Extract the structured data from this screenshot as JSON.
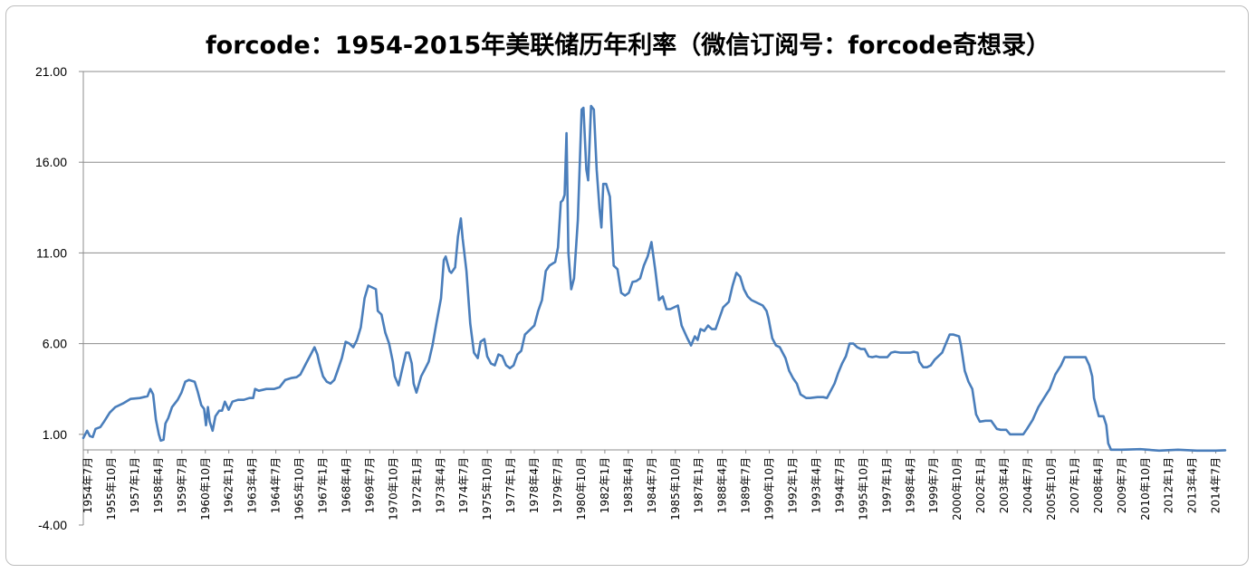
{
  "chart_data": {
    "type": "line",
    "title": "forcode：1954-2015年美联储历年利率（微信订阅号：forcode奇想录）",
    "xlabel": "",
    "ylabel": "",
    "ylim": [
      -4,
      21
    ],
    "yticks": [
      "21.00",
      "16.00",
      "11.00",
      "6.00",
      "1.00",
      "-4.00"
    ],
    "grid": true,
    "legend": "none",
    "line_color": "#4a7ebb",
    "x_labels": [
      "1954年7月",
      "1955年10月",
      "1957年1月",
      "1958年4月",
      "1959年7月",
      "1960年10月",
      "1962年1月",
      "1963年4月",
      "1964年7月",
      "1965年10月",
      "1967年1月",
      "1968年4月",
      "1969年7月",
      "1970年10月",
      "1972年1月",
      "1973年4月",
      "1974年7月",
      "1975年10月",
      "1977年1月",
      "1978年4月",
      "1979年7月",
      "1980年10月",
      "1982年1月",
      "1983年4月",
      "1984年7月",
      "1985年10月",
      "1987年1月",
      "1988年4月",
      "1989年7月",
      "1990年10月",
      "1992年1月",
      "1993年4月",
      "1994年7月",
      "1995年10月",
      "1997年1月",
      "1998年4月",
      "1999年7月",
      "2000年10月",
      "2002年1月",
      "2003年4月",
      "2004年7月",
      "2005年10月",
      "2007年1月",
      "2008年4月",
      "2009年7月",
      "2010年10月",
      "2012年1月",
      "2013年4月",
      "2014年7月"
    ],
    "series": [
      {
        "points": [
          [
            1954.5,
            0.8
          ],
          [
            1954.7,
            1.2
          ],
          [
            1954.85,
            0.9
          ],
          [
            1955.0,
            0.85
          ],
          [
            1955.15,
            1.3
          ],
          [
            1955.4,
            1.4
          ],
          [
            1955.6,
            1.7
          ],
          [
            1955.9,
            2.2
          ],
          [
            1956.2,
            2.5
          ],
          [
            1956.6,
            2.7
          ],
          [
            1957.0,
            2.95
          ],
          [
            1957.5,
            3.0
          ],
          [
            1957.9,
            3.1
          ],
          [
            1958.05,
            3.5
          ],
          [
            1958.2,
            3.2
          ],
          [
            1958.35,
            1.8
          ],
          [
            1958.5,
            1.0
          ],
          [
            1958.6,
            0.65
          ],
          [
            1958.75,
            0.7
          ],
          [
            1958.85,
            1.6
          ],
          [
            1959.0,
            1.9
          ],
          [
            1959.2,
            2.5
          ],
          [
            1959.5,
            2.9
          ],
          [
            1959.7,
            3.3
          ],
          [
            1959.9,
            3.9
          ],
          [
            1960.1,
            4.0
          ],
          [
            1960.4,
            3.9
          ],
          [
            1960.55,
            3.4
          ],
          [
            1960.75,
            2.6
          ],
          [
            1960.9,
            2.4
          ],
          [
            1961.0,
            1.5
          ],
          [
            1961.1,
            2.5
          ],
          [
            1961.2,
            1.7
          ],
          [
            1961.35,
            1.2
          ],
          [
            1961.5,
            2.0
          ],
          [
            1961.7,
            2.3
          ],
          [
            1961.85,
            2.3
          ],
          [
            1962.0,
            2.8
          ],
          [
            1962.2,
            2.35
          ],
          [
            1962.4,
            2.8
          ],
          [
            1962.7,
            2.9
          ],
          [
            1963.0,
            2.9
          ],
          [
            1963.3,
            3.0
          ],
          [
            1963.5,
            3.0
          ],
          [
            1963.6,
            3.5
          ],
          [
            1963.8,
            3.4
          ],
          [
            1964.2,
            3.5
          ],
          [
            1964.6,
            3.5
          ],
          [
            1964.9,
            3.6
          ],
          [
            1965.2,
            4.0
          ],
          [
            1965.5,
            4.1
          ],
          [
            1965.8,
            4.15
          ],
          [
            1966.0,
            4.3
          ],
          [
            1966.3,
            4.9
          ],
          [
            1966.55,
            5.4
          ],
          [
            1966.75,
            5.8
          ],
          [
            1966.9,
            5.4
          ],
          [
            1967.0,
            4.95
          ],
          [
            1967.2,
            4.2
          ],
          [
            1967.4,
            3.9
          ],
          [
            1967.6,
            3.8
          ],
          [
            1967.8,
            4.0
          ],
          [
            1968.0,
            4.6
          ],
          [
            1968.2,
            5.2
          ],
          [
            1968.4,
            6.1
          ],
          [
            1968.6,
            6.0
          ],
          [
            1968.8,
            5.8
          ],
          [
            1969.0,
            6.2
          ],
          [
            1969.2,
            6.9
          ],
          [
            1969.4,
            8.5
          ],
          [
            1969.6,
            9.2
          ],
          [
            1969.8,
            9.1
          ],
          [
            1970.0,
            9.0
          ],
          [
            1970.1,
            7.8
          ],
          [
            1970.3,
            7.6
          ],
          [
            1970.5,
            6.6
          ],
          [
            1970.7,
            6.0
          ],
          [
            1970.9,
            5.0
          ],
          [
            1971.0,
            4.2
          ],
          [
            1971.2,
            3.7
          ],
          [
            1971.4,
            4.6
          ],
          [
            1971.6,
            5.5
          ],
          [
            1971.75,
            5.5
          ],
          [
            1971.9,
            4.9
          ],
          [
            1972.0,
            3.8
          ],
          [
            1972.15,
            3.3
          ],
          [
            1972.4,
            4.2
          ],
          [
            1972.6,
            4.6
          ],
          [
            1972.8,
            5.0
          ],
          [
            1973.0,
            5.9
          ],
          [
            1973.2,
            7.1
          ],
          [
            1973.45,
            8.5
          ],
          [
            1973.6,
            10.6
          ],
          [
            1973.7,
            10.8
          ],
          [
            1973.9,
            10.0
          ],
          [
            1974.0,
            9.9
          ],
          [
            1974.2,
            10.2
          ],
          [
            1974.35,
            11.9
          ],
          [
            1974.5,
            12.9
          ],
          [
            1974.6,
            11.8
          ],
          [
            1974.8,
            10.0
          ],
          [
            1975.0,
            7.1
          ],
          [
            1975.2,
            5.5
          ],
          [
            1975.4,
            5.2
          ],
          [
            1975.55,
            6.1
          ],
          [
            1975.75,
            6.25
          ],
          [
            1975.9,
            5.3
          ],
          [
            1976.1,
            4.9
          ],
          [
            1976.3,
            4.8
          ],
          [
            1976.5,
            5.4
          ],
          [
            1976.7,
            5.3
          ],
          [
            1976.9,
            4.8
          ],
          [
            1977.1,
            4.65
          ],
          [
            1977.3,
            4.8
          ],
          [
            1977.5,
            5.4
          ],
          [
            1977.7,
            5.6
          ],
          [
            1977.9,
            6.5
          ],
          [
            1978.1,
            6.7
          ],
          [
            1978.4,
            7.0
          ],
          [
            1978.6,
            7.8
          ],
          [
            1978.8,
            8.4
          ],
          [
            1979.0,
            10.0
          ],
          [
            1979.2,
            10.3
          ],
          [
            1979.5,
            10.5
          ],
          [
            1979.65,
            11.3
          ],
          [
            1979.8,
            13.8
          ],
          [
            1979.9,
            13.9
          ],
          [
            1980.0,
            14.2
          ],
          [
            1980.1,
            17.6
          ],
          [
            1980.2,
            11.0
          ],
          [
            1980.35,
            9.0
          ],
          [
            1980.5,
            9.6
          ],
          [
            1980.7,
            12.8
          ],
          [
            1980.9,
            18.9
          ],
          [
            1981.0,
            19.0
          ],
          [
            1981.15,
            15.6
          ],
          [
            1981.25,
            15.0
          ],
          [
            1981.4,
            19.1
          ],
          [
            1981.55,
            18.9
          ],
          [
            1981.7,
            15.6
          ],
          [
            1981.85,
            13.4
          ],
          [
            1981.95,
            12.4
          ],
          [
            1982.05,
            14.8
          ],
          [
            1982.2,
            14.8
          ],
          [
            1982.4,
            14.1
          ],
          [
            1982.6,
            10.3
          ],
          [
            1982.8,
            10.1
          ],
          [
            1983.0,
            8.8
          ],
          [
            1983.2,
            8.65
          ],
          [
            1983.4,
            8.8
          ],
          [
            1983.6,
            9.4
          ],
          [
            1983.8,
            9.45
          ],
          [
            1984.0,
            9.6
          ],
          [
            1984.2,
            10.3
          ],
          [
            1984.4,
            10.8
          ],
          [
            1984.6,
            11.6
          ],
          [
            1984.8,
            10.1
          ],
          [
            1985.0,
            8.4
          ],
          [
            1985.2,
            8.6
          ],
          [
            1985.4,
            7.9
          ],
          [
            1985.6,
            7.9
          ],
          [
            1985.8,
            8.0
          ],
          [
            1986.0,
            8.1
          ],
          [
            1986.2,
            7.0
          ],
          [
            1986.5,
            6.3
          ],
          [
            1986.7,
            5.9
          ],
          [
            1986.9,
            6.4
          ],
          [
            1987.05,
            6.2
          ],
          [
            1987.2,
            6.8
          ],
          [
            1987.4,
            6.7
          ],
          [
            1987.6,
            7.0
          ],
          [
            1987.8,
            6.8
          ],
          [
            1988.0,
            6.8
          ],
          [
            1988.2,
            7.4
          ],
          [
            1988.4,
            8.0
          ],
          [
            1988.7,
            8.3
          ],
          [
            1988.9,
            9.2
          ],
          [
            1989.1,
            9.9
          ],
          [
            1989.3,
            9.7
          ],
          [
            1989.5,
            9.0
          ],
          [
            1989.7,
            8.6
          ],
          [
            1989.9,
            8.4
          ],
          [
            1990.1,
            8.3
          ],
          [
            1990.3,
            8.2
          ],
          [
            1990.5,
            8.1
          ],
          [
            1990.7,
            7.8
          ],
          [
            1990.8,
            7.4
          ],
          [
            1991.0,
            6.3
          ],
          [
            1991.2,
            5.9
          ],
          [
            1991.4,
            5.8
          ],
          [
            1991.7,
            5.2
          ],
          [
            1991.9,
            4.5
          ],
          [
            1992.1,
            4.1
          ],
          [
            1992.3,
            3.8
          ],
          [
            1992.5,
            3.2
          ],
          [
            1992.8,
            3.0
          ],
          [
            1993.0,
            3.0
          ],
          [
            1993.4,
            3.05
          ],
          [
            1993.7,
            3.05
          ],
          [
            1993.9,
            3.0
          ],
          [
            1994.1,
            3.4
          ],
          [
            1994.3,
            3.8
          ],
          [
            1994.5,
            4.4
          ],
          [
            1994.7,
            4.9
          ],
          [
            1994.9,
            5.3
          ],
          [
            1995.1,
            6.0
          ],
          [
            1995.3,
            6.0
          ],
          [
            1995.5,
            5.8
          ],
          [
            1995.7,
            5.7
          ],
          [
            1995.9,
            5.7
          ],
          [
            1996.1,
            5.3
          ],
          [
            1996.3,
            5.25
          ],
          [
            1996.5,
            5.3
          ],
          [
            1996.7,
            5.25
          ],
          [
            1996.9,
            5.25
          ],
          [
            1997.1,
            5.25
          ],
          [
            1997.3,
            5.5
          ],
          [
            1997.5,
            5.55
          ],
          [
            1997.8,
            5.5
          ],
          [
            1998.0,
            5.5
          ],
          [
            1998.3,
            5.5
          ],
          [
            1998.5,
            5.55
          ],
          [
            1998.7,
            5.5
          ],
          [
            1998.8,
            5.0
          ],
          [
            1999.0,
            4.7
          ],
          [
            1999.2,
            4.7
          ],
          [
            1999.4,
            4.8
          ],
          [
            1999.6,
            5.1
          ],
          [
            1999.8,
            5.3
          ],
          [
            2000.0,
            5.5
          ],
          [
            2000.2,
            6.0
          ],
          [
            2000.4,
            6.5
          ],
          [
            2000.6,
            6.5
          ],
          [
            2000.9,
            6.4
          ],
          [
            2001.0,
            5.9
          ],
          [
            2001.2,
            4.5
          ],
          [
            2001.4,
            3.9
          ],
          [
            2001.6,
            3.5
          ],
          [
            2001.8,
            2.1
          ],
          [
            2002.0,
            1.7
          ],
          [
            2002.3,
            1.75
          ],
          [
            2002.6,
            1.75
          ],
          [
            2002.9,
            1.3
          ],
          [
            2003.1,
            1.25
          ],
          [
            2003.4,
            1.25
          ],
          [
            2003.6,
            1.0
          ],
          [
            2003.8,
            1.0
          ],
          [
            2004.0,
            1.0
          ],
          [
            2004.3,
            1.0
          ],
          [
            2004.5,
            1.3
          ],
          [
            2004.8,
            1.8
          ],
          [
            2005.1,
            2.5
          ],
          [
            2005.4,
            3.0
          ],
          [
            2005.7,
            3.5
          ],
          [
            2006.0,
            4.3
          ],
          [
            2006.3,
            4.8
          ],
          [
            2006.5,
            5.25
          ],
          [
            2006.8,
            5.25
          ],
          [
            2007.2,
            5.25
          ],
          [
            2007.6,
            5.25
          ],
          [
            2007.8,
            4.8
          ],
          [
            2007.95,
            4.2
          ],
          [
            2008.05,
            3.0
          ],
          [
            2008.15,
            2.6
          ],
          [
            2008.3,
            2.0
          ],
          [
            2008.55,
            2.0
          ],
          [
            2008.7,
            1.5
          ],
          [
            2008.8,
            0.5
          ],
          [
            2008.95,
            0.15
          ],
          [
            2009.5,
            0.15
          ],
          [
            2010.5,
            0.18
          ],
          [
            2011.5,
            0.1
          ],
          [
            2012.5,
            0.15
          ],
          [
            2013.5,
            0.1
          ],
          [
            2014.5,
            0.1
          ],
          [
            2015.0,
            0.12
          ]
        ]
      }
    ]
  }
}
